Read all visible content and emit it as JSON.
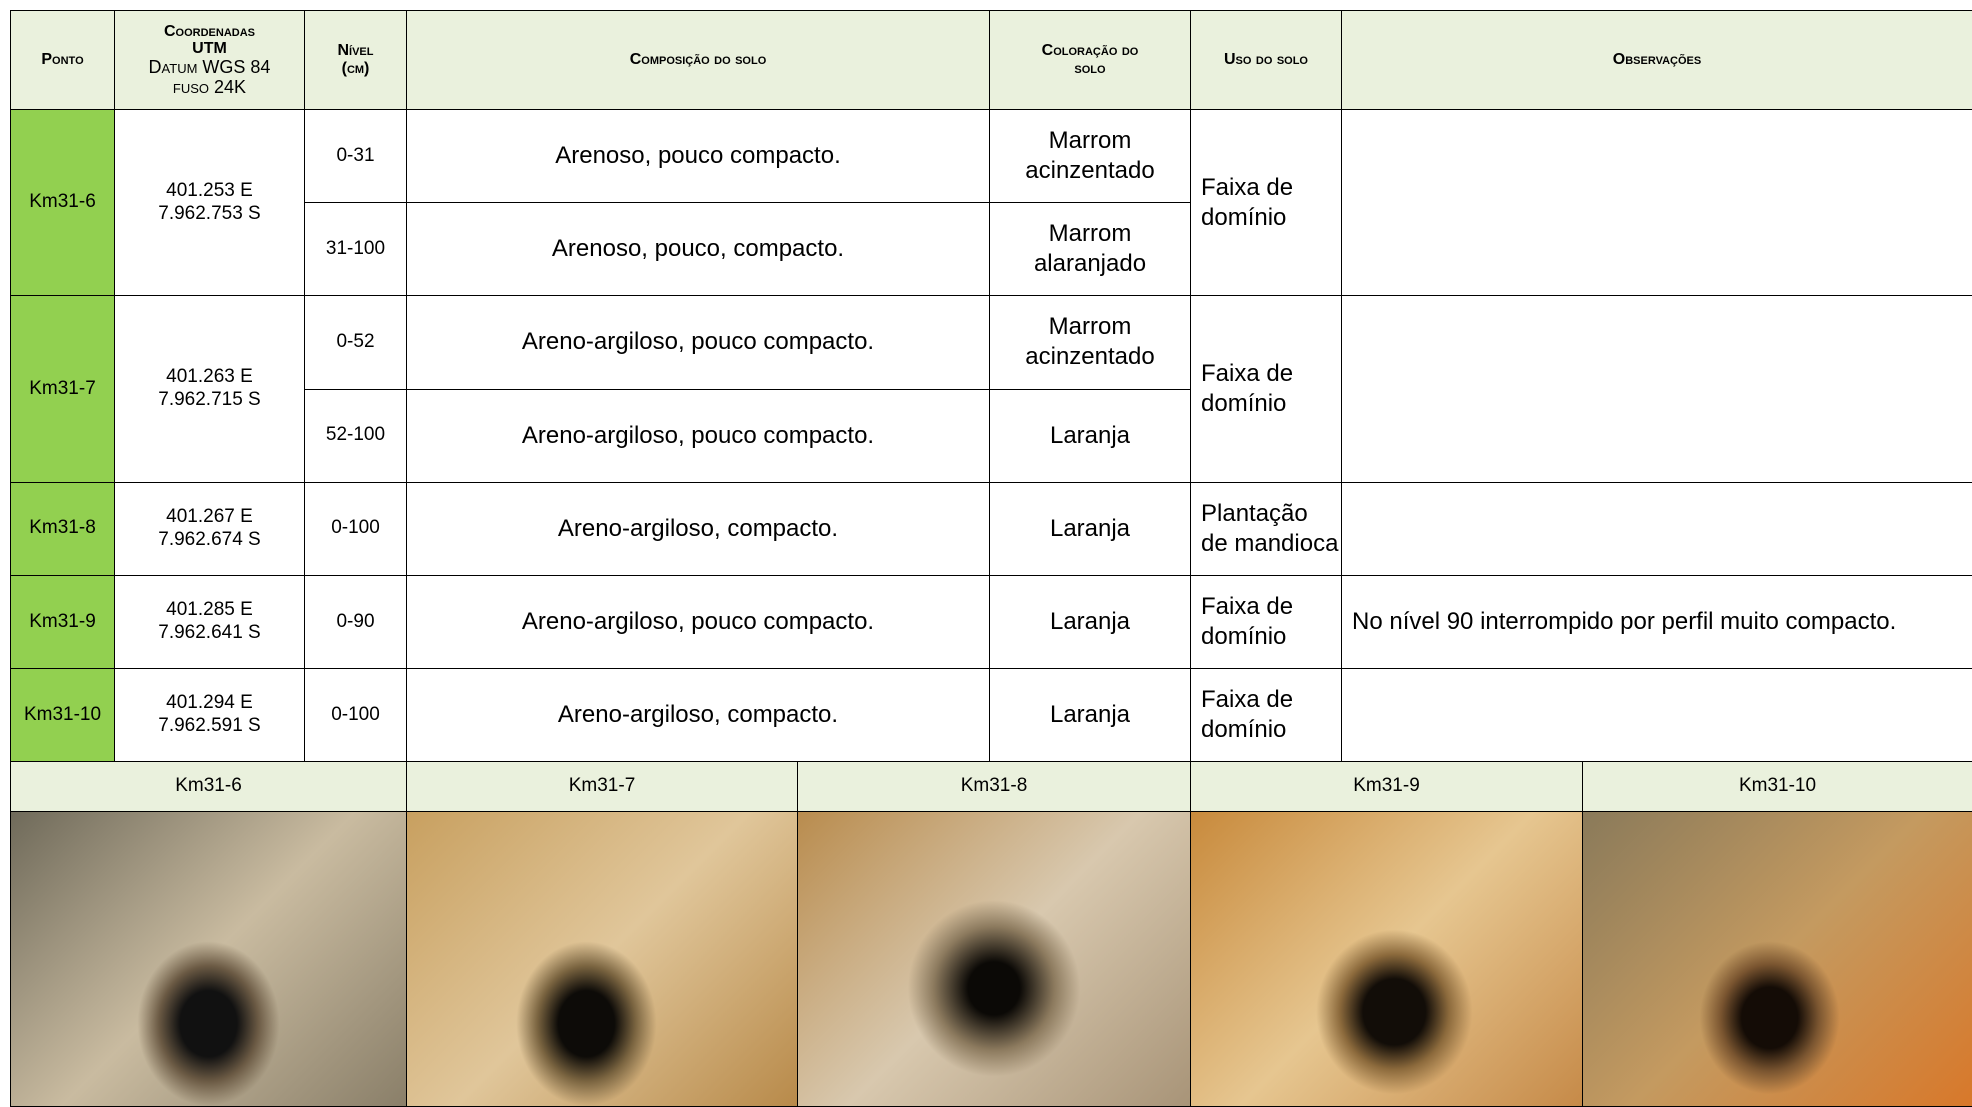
{
  "header": {
    "ponto": "Ponto",
    "coordenadas": [
      "Coordenadas",
      "UTM",
      "Datum WGS 84",
      "fuso 24K"
    ],
    "nivel": [
      "Nível",
      "(cm)"
    ],
    "composicao": "Composição do solo",
    "coloracao": [
      "Coloração do",
      "solo"
    ],
    "uso": "Uso do solo",
    "observacoes": "Observações"
  },
  "rows": [
    {
      "ponto": "Km31-6",
      "coords": [
        "401.253 E",
        "7.962.753 S"
      ],
      "levels": [
        {
          "nivel": "0-31",
          "composicao": "Arenoso, pouco compacto.",
          "coloracao": "Marrom acinzentado"
        },
        {
          "nivel": "31-100",
          "composicao": "Arenoso, pouco, compacto.",
          "coloracao": "Marrom alaranjado"
        }
      ],
      "uso": "Faixa de domínio"
    },
    {
      "ponto": "Km31-7",
      "coords": [
        "401.263 E",
        "7.962.715 S"
      ],
      "levels": [
        {
          "nivel": "0-52",
          "composicao": "Areno-argiloso, pouco compacto.",
          "coloracao": "Marrom acinzentado"
        },
        {
          "nivel": "52-100",
          "composicao": "Areno-argiloso, pouco compacto.",
          "coloracao": "Laranja"
        }
      ],
      "uso": "Faixa de domínio"
    },
    {
      "ponto": "Km31-8",
      "coords": [
        "401.267 E",
        "7.962.674 S"
      ],
      "levels": [
        {
          "nivel": "0-100",
          "composicao": "Areno-argiloso, compacto.",
          "coloracao": "Laranja"
        }
      ],
      "uso": "Plantação de mandioca"
    },
    {
      "ponto": "Km31-9",
      "coords": [
        "401.285 E",
        "7.962.641 S"
      ],
      "levels": [
        {
          "nivel": "0-90",
          "composicao": "Areno-argiloso, pouco compacto.",
          "coloracao": "Laranja"
        }
      ],
      "uso": "Faixa de domínio",
      "observacoes": "No nível 90 interrompido por perfil muito compacto."
    },
    {
      "ponto": "Km31-10",
      "coords": [
        "401.294 E",
        "7.962.591 S"
      ],
      "levels": [
        {
          "nivel": "0-100",
          "composicao": "Areno-argiloso, compacto.",
          "coloracao": "Laranja"
        }
      ],
      "uso": "Faixa de domínio"
    }
  ],
  "photos": [
    "Km31-6",
    "Km31-7",
    "Km31-8",
    "Km31-9",
    "Km31-10"
  ]
}
